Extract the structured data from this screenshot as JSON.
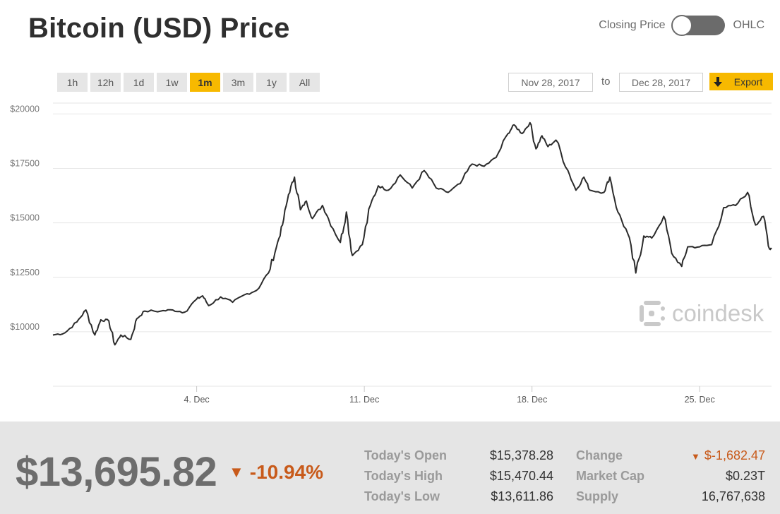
{
  "title": "Bitcoin (USD) Price",
  "mode_toggle": {
    "left_label": "Closing Price",
    "right_label": "OHLC",
    "selected": "Closing Price"
  },
  "range_buttons": [
    "1h",
    "12h",
    "1d",
    "1w",
    "1m",
    "3m",
    "1y",
    "All"
  ],
  "active_range": "1m",
  "date_range": {
    "from": "Nov 28, 2017",
    "separator": "to",
    "to": "Dec 28, 2017"
  },
  "export_label": "Export",
  "watermark": "coindesk",
  "colors": {
    "accent": "#f7b900",
    "negative": "#c85a1a",
    "line": "#2b2b2b"
  },
  "footer": {
    "price": "$13,695.82",
    "change_pct": "-10.94%",
    "stats_left": [
      {
        "label": "Today's Open",
        "value": "$15,378.28"
      },
      {
        "label": "Today's High",
        "value": "$15,470.44"
      },
      {
        "label": "Today's Low",
        "value": "$13,611.86"
      }
    ],
    "stats_right": [
      {
        "label": "Change",
        "value": "$-1,682.47"
      },
      {
        "label": "Market Cap",
        "value": "$0.23T"
      },
      {
        "label": "Supply",
        "value": "16,767,638"
      }
    ]
  },
  "chart_data": {
    "type": "line",
    "title": "",
    "xlabel": "",
    "ylabel": "",
    "ylim": [
      7500,
      20500
    ],
    "y_ticks": [
      10000,
      12500,
      15000,
      17500,
      20000
    ],
    "y_tick_labels": [
      "$10000",
      "$12500",
      "$15000",
      "$17500",
      "$20000"
    ],
    "x_range": [
      "2017-11-28",
      "2017-12-28"
    ],
    "x_ticks": [
      {
        "date": "2017-12-04",
        "label": "4. Dec"
      },
      {
        "date": "2017-12-11",
        "label": "11. Dec"
      },
      {
        "date": "2017-12-18",
        "label": "18. Dec"
      },
      {
        "date": "2017-12-25",
        "label": "25. Dec"
      }
    ],
    "grid": true,
    "series": [
      {
        "points": [
          [
            "2017-11-28 00:00",
            9850
          ],
          [
            "2017-11-28 12:00",
            9950
          ],
          [
            "2017-11-29 00:00",
            10450
          ],
          [
            "2017-11-29 09:00",
            11000
          ],
          [
            "2017-11-29 18:00",
            9850
          ],
          [
            "2017-11-30 00:00",
            10550
          ],
          [
            "2017-11-30 08:00",
            10500
          ],
          [
            "2017-11-30 14:00",
            9400
          ],
          [
            "2017-11-30 20:00",
            9850
          ],
          [
            "2017-12-01 06:00",
            9650
          ],
          [
            "2017-12-01 12:00",
            10600
          ],
          [
            "2017-12-01 20:00",
            10950
          ],
          [
            "2017-12-02 12:00",
            10950
          ],
          [
            "2017-12-03 00:00",
            11000
          ],
          [
            "2017-12-03 12:00",
            10900
          ],
          [
            "2017-12-04 00:00",
            11500
          ],
          [
            "2017-12-04 06:00",
            11650
          ],
          [
            "2017-12-04 12:00",
            11200
          ],
          [
            "2017-12-05 00:00",
            11600
          ],
          [
            "2017-12-05 12:00",
            11350
          ],
          [
            "2017-12-06 00:00",
            11700
          ],
          [
            "2017-12-06 12:00",
            11900
          ],
          [
            "2017-12-07 00:00",
            12700
          ],
          [
            "2017-12-07 08:00",
            13900
          ],
          [
            "2017-12-07 14:00",
            14900
          ],
          [
            "2017-12-07 20:00",
            16300
          ],
          [
            "2017-12-08 02:00",
            17100
          ],
          [
            "2017-12-08 08:00",
            15600
          ],
          [
            "2017-12-08 14:00",
            16000
          ],
          [
            "2017-12-08 20:00",
            15200
          ],
          [
            "2017-12-09 06:00",
            15800
          ],
          [
            "2017-12-09 12:00",
            15200
          ],
          [
            "2017-12-10 00:00",
            14100
          ],
          [
            "2017-12-10 06:00",
            15500
          ],
          [
            "2017-12-10 12:00",
            13500
          ],
          [
            "2017-12-10 22:00",
            14000
          ],
          [
            "2017-12-11 06:00",
            15800
          ],
          [
            "2017-12-11 14:00",
            16700
          ],
          [
            "2017-12-12 00:00",
            16500
          ],
          [
            "2017-12-12 12:00",
            17200
          ],
          [
            "2017-12-13 00:00",
            16600
          ],
          [
            "2017-12-13 12:00",
            17400
          ],
          [
            "2017-12-14 00:00",
            16600
          ],
          [
            "2017-12-14 12:00",
            16400
          ],
          [
            "2017-12-15 00:00",
            16800
          ],
          [
            "2017-12-15 12:00",
            17700
          ],
          [
            "2017-12-16 00:00",
            17600
          ],
          [
            "2017-12-16 12:00",
            18000
          ],
          [
            "2017-12-17 00:00",
            19100
          ],
          [
            "2017-12-17 06:00",
            19500
          ],
          [
            "2017-12-17 14:00",
            19100
          ],
          [
            "2017-12-17 22:00",
            19600
          ],
          [
            "2017-12-18 04:00",
            18400
          ],
          [
            "2017-12-18 10:00",
            19000
          ],
          [
            "2017-12-18 16:00",
            18500
          ],
          [
            "2017-12-19 00:00",
            18800
          ],
          [
            "2017-12-19 12:00",
            17400
          ],
          [
            "2017-12-19 20:00",
            16500
          ],
          [
            "2017-12-20 04:00",
            17100
          ],
          [
            "2017-12-20 10:00",
            16500
          ],
          [
            "2017-12-21 00:00",
            16400
          ],
          [
            "2017-12-21 06:00",
            17100
          ],
          [
            "2017-12-21 14:00",
            15500
          ],
          [
            "2017-12-22 00:00",
            14500
          ],
          [
            "2017-12-22 08:00",
            12700
          ],
          [
            "2017-12-22 16:00",
            14400
          ],
          [
            "2017-12-23 00:00",
            14300
          ],
          [
            "2017-12-23 12:00",
            15300
          ],
          [
            "2017-12-23 20:00",
            13600
          ],
          [
            "2017-12-24 06:00",
            13000
          ],
          [
            "2017-12-24 12:00",
            13900
          ],
          [
            "2017-12-25 00:00",
            13900
          ],
          [
            "2017-12-25 12:00",
            14000
          ],
          [
            "2017-12-26 00:00",
            15700
          ],
          [
            "2017-12-26 12:00",
            15800
          ],
          [
            "2017-12-27 00:00",
            16400
          ],
          [
            "2017-12-27 08:00",
            14900
          ],
          [
            "2017-12-27 16:00",
            15300
          ],
          [
            "2017-12-27 22:00",
            13800
          ],
          [
            "2017-12-28 00:00",
            13850
          ]
        ]
      }
    ]
  }
}
